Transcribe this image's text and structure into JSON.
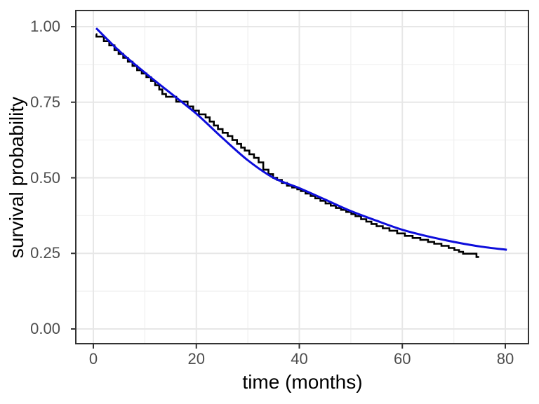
{
  "figure": {
    "background": "#ffffff"
  },
  "chart_data": {
    "type": "line",
    "title": "",
    "xlabel": "time (months)",
    "ylabel": "survival probability",
    "legend": "none",
    "grid": {
      "show": true,
      "major_color": "#e7e7e7",
      "minor_color": "#f1f1f1"
    },
    "panel": {
      "border_color": "#333333",
      "background": "#ffffff"
    },
    "x_axis": {
      "ticks": [
        0,
        20,
        40,
        60,
        80
      ],
      "tick_labels": [
        "0",
        "20",
        "40",
        "60",
        "80"
      ],
      "minor_ticks": [
        10,
        30,
        50,
        70
      ],
      "data_range": [
        0,
        80
      ],
      "displayed_range": [
        -3.4,
        84.5
      ]
    },
    "y_axis": {
      "ticks": [
        0.0,
        0.25,
        0.5,
        0.75,
        1.0
      ],
      "tick_labels": [
        "0.00",
        "0.25",
        "0.50",
        "0.75",
        "1.00"
      ],
      "minor_ticks": [
        0.125,
        0.375,
        0.625,
        0.875
      ],
      "data_range": [
        0,
        1
      ],
      "displayed_range": [
        -0.05,
        1.05
      ]
    },
    "series": [
      {
        "name": "black-step-survival-curve",
        "style": "step",
        "color": "#000000",
        "stroke_width": 2.6,
        "points": [
          [
            0.5,
            0.975
          ],
          [
            0.6,
            0.967
          ],
          [
            2.05,
            0.952
          ],
          [
            3.1,
            0.938
          ],
          [
            4.1,
            0.922
          ],
          [
            4.9,
            0.91
          ],
          [
            5.8,
            0.897
          ],
          [
            6.7,
            0.884
          ],
          [
            7.6,
            0.87
          ],
          [
            8.5,
            0.856
          ],
          [
            9.4,
            0.845
          ],
          [
            10.3,
            0.833
          ],
          [
            11.2,
            0.82
          ],
          [
            12.0,
            0.806
          ],
          [
            12.8,
            0.792
          ],
          [
            13.4,
            0.777
          ],
          [
            14.1,
            0.768
          ],
          [
            16.1,
            0.752
          ],
          [
            18.3,
            0.736
          ],
          [
            19.4,
            0.722
          ],
          [
            20.5,
            0.71
          ],
          [
            21.8,
            0.7
          ],
          [
            22.6,
            0.686
          ],
          [
            23.4,
            0.673
          ],
          [
            24.2,
            0.661
          ],
          [
            25.1,
            0.649
          ],
          [
            26.1,
            0.638
          ],
          [
            27.0,
            0.625
          ],
          [
            27.9,
            0.612
          ],
          [
            28.7,
            0.6
          ],
          [
            29.4,
            0.59
          ],
          [
            30.3,
            0.578
          ],
          [
            31.2,
            0.566
          ],
          [
            32.1,
            0.551
          ],
          [
            33.0,
            0.527
          ],
          [
            34.0,
            0.512
          ],
          [
            34.9,
            0.5
          ],
          [
            35.7,
            0.493
          ],
          [
            36.6,
            0.483
          ],
          [
            37.6,
            0.474
          ],
          [
            38.6,
            0.468
          ],
          [
            39.6,
            0.462
          ],
          [
            40.3,
            0.456
          ],
          [
            41.2,
            0.448
          ],
          [
            42.2,
            0.44
          ],
          [
            43.1,
            0.432
          ],
          [
            44.1,
            0.424
          ],
          [
            45.1,
            0.415
          ],
          [
            46.1,
            0.408
          ],
          [
            47.1,
            0.4
          ],
          [
            48.1,
            0.394
          ],
          [
            49.1,
            0.387
          ],
          [
            50.1,
            0.38
          ],
          [
            50.9,
            0.373
          ],
          [
            52.0,
            0.363
          ],
          [
            53.0,
            0.355
          ],
          [
            54.0,
            0.347
          ],
          [
            55.0,
            0.34
          ],
          [
            56.2,
            0.333
          ],
          [
            57.5,
            0.325
          ],
          [
            59.0,
            0.316
          ],
          [
            60.5,
            0.308
          ],
          [
            62.0,
            0.301
          ],
          [
            63.5,
            0.295
          ],
          [
            65.0,
            0.288
          ],
          [
            66.2,
            0.282
          ],
          [
            67.6,
            0.275
          ],
          [
            69.0,
            0.268
          ],
          [
            70.1,
            0.261
          ],
          [
            71.0,
            0.255
          ],
          [
            71.8,
            0.249
          ],
          [
            74.4,
            0.238
          ],
          [
            74.9,
            0.238
          ]
        ]
      },
      {
        "name": "blue-smooth-fit-curve",
        "style": "smooth",
        "color": "#0d0ddb",
        "stroke_width": 3,
        "points": [
          [
            0.55,
            0.995
          ],
          [
            5,
            0.92
          ],
          [
            10,
            0.848
          ],
          [
            15,
            0.78
          ],
          [
            20,
            0.712
          ],
          [
            25,
            0.633
          ],
          [
            30,
            0.558
          ],
          [
            35,
            0.5
          ],
          [
            40,
            0.466
          ],
          [
            45,
            0.428
          ],
          [
            50,
            0.39
          ],
          [
            55,
            0.358
          ],
          [
            60,
            0.328
          ],
          [
            65,
            0.306
          ],
          [
            70,
            0.288
          ],
          [
            75,
            0.273
          ],
          [
            80.3,
            0.262
          ]
        ]
      }
    ]
  },
  "axis_style": {
    "tick_color": "#333333",
    "tick_label_color": "#4d4d4d",
    "title_color": "#000000"
  }
}
